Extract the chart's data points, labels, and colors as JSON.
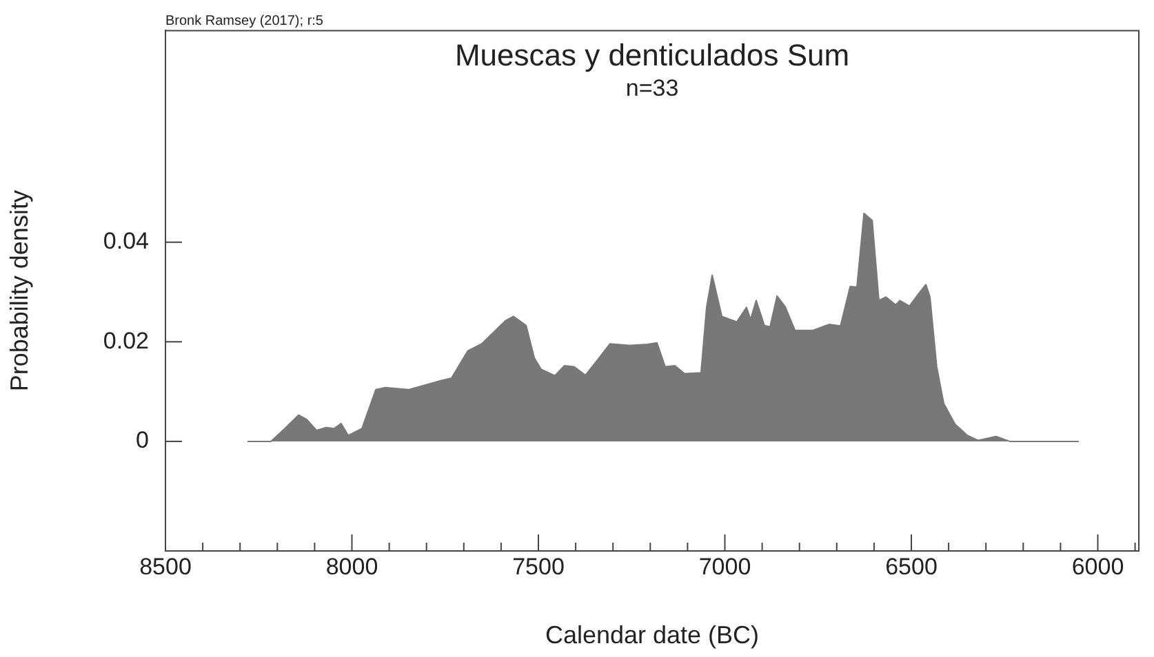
{
  "chart_data": {
    "type": "area",
    "title": "Muescas y denticulados Sum",
    "subtitle": "n=33",
    "xlabel": "Calendar date (BC)",
    "ylabel": "Probability density",
    "annotations": [
      "Bronk Ramsey (2017); r:5"
    ],
    "xlim": [
      8500,
      5890
    ],
    "xticks": [
      8500,
      {
        "value": 8400,
        "label": null
      },
      {
        "value": 8300,
        "label": null
      },
      {
        "value": 8200,
        "label": null
      },
      {
        "value": 8100,
        "label": null
      },
      8000,
      {
        "value": 7900,
        "label": null
      },
      {
        "value": 7800,
        "label": null
      },
      {
        "value": 7700,
        "label": null
      },
      {
        "value": 7600,
        "label": null
      },
      7500,
      {
        "value": 7400,
        "label": null
      },
      {
        "value": 7300,
        "label": null
      },
      {
        "value": 7200,
        "label": null
      },
      {
        "value": 7100,
        "label": null
      },
      7000,
      {
        "value": 6900,
        "label": null
      },
      {
        "value": 6800,
        "label": null
      },
      {
        "value": 6700,
        "label": null
      },
      {
        "value": 6600,
        "label": null
      },
      6500,
      {
        "value": 6400,
        "label": null
      },
      {
        "value": 6300,
        "label": null
      },
      {
        "value": 6200,
        "label": null
      },
      {
        "value": 6100,
        "label": null
      },
      6000,
      {
        "value": 5900,
        "label": null
      }
    ],
    "ylim": [
      -0.022,
      0.0825
    ],
    "yticks": [
      0,
      0.02,
      0.04
    ],
    "grid": false,
    "legend": false,
    "series": [
      {
        "color": "#787878",
        "x": [
          8280,
          8217,
          8180,
          8143,
          8121,
          8095,
          8069,
          8047,
          8029,
          8010,
          7973,
          7936,
          7910,
          7847,
          7762,
          7733,
          7689,
          7652,
          7615,
          7589,
          7567,
          7533,
          7511,
          7493,
          7456,
          7430,
          7404,
          7374,
          7345,
          7308,
          7256,
          7208,
          7182,
          7160,
          7134,
          7108,
          7064,
          7049,
          7034,
          7008,
          6968,
          6942,
          6931,
          6916,
          6894,
          6879,
          6860,
          6838,
          6812,
          6764,
          6720,
          6690,
          6664,
          6646,
          6627,
          6605,
          6587,
          6568,
          6542,
          6531,
          6505,
          6480,
          6461,
          6450,
          6432,
          6413,
          6383,
          6350,
          6321,
          6273,
          6236,
          6051
        ],
        "values": [
          0,
          0,
          0.0026,
          0.0053,
          0.0044,
          0.0022,
          0.0028,
          0.0026,
          0.0036,
          0.0012,
          0.0026,
          0.0104,
          0.0108,
          0.0104,
          0.0122,
          0.0127,
          0.0182,
          0.0196,
          0.0223,
          0.0242,
          0.0251,
          0.0233,
          0.0168,
          0.0145,
          0.0132,
          0.0152,
          0.015,
          0.0133,
          0.016,
          0.0196,
          0.0193,
          0.0195,
          0.0198,
          0.015,
          0.0152,
          0.0136,
          0.0138,
          0.0269,
          0.0334,
          0.0251,
          0.024,
          0.0269,
          0.0245,
          0.0283,
          0.0233,
          0.023,
          0.0292,
          0.027,
          0.0223,
          0.0223,
          0.0235,
          0.0232,
          0.0311,
          0.031,
          0.0458,
          0.0444,
          0.0283,
          0.029,
          0.0274,
          0.0283,
          0.0272,
          0.0297,
          0.0315,
          0.029,
          0.015,
          0.0076,
          0.0035,
          0.0012,
          0.0002,
          0.001,
          0,
          0
        ]
      }
    ]
  }
}
